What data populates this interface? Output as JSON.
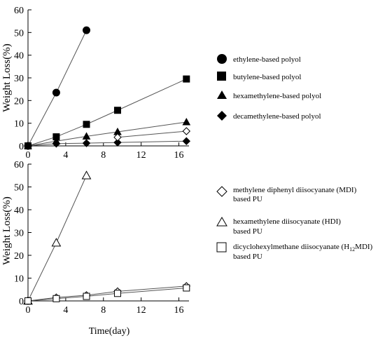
{
  "chart_data": [
    {
      "type": "scatter",
      "title": "",
      "xlabel": "",
      "ylabel": "Weight Loss(%)",
      "xlim": [
        0,
        17
      ],
      "ylim": [
        0,
        60
      ],
      "xticks": [
        "0",
        "4",
        "8",
        "12",
        "16"
      ],
      "yticks": [
        "0",
        "10",
        "20",
        "30",
        "40",
        "50",
        "60"
      ],
      "grid": false,
      "legend_placement": "right",
      "series": [
        {
          "name": "ethylene-based polyol",
          "marker": "circle",
          "filled": true,
          "x": [
            0,
            3,
            6.2
          ],
          "y": [
            0,
            23.5,
            51
          ]
        },
        {
          "name": "butylene-based polyol",
          "marker": "square",
          "filled": true,
          "x": [
            0,
            3,
            6.2,
            9.5,
            16.8
          ],
          "y": [
            0,
            4,
            9.5,
            15.7,
            29.5
          ]
        },
        {
          "name": "hexamethylene-based polyol",
          "marker": "triangle",
          "filled": true,
          "x": [
            0,
            3,
            6.2,
            9.5,
            16.8
          ],
          "y": [
            0,
            2.1,
            4.2,
            6.2,
            10.5
          ]
        },
        {
          "name": "decamethylene-based polyol",
          "marker": "diamond",
          "filled": true,
          "x": [
            0,
            3,
            6.2,
            9.5,
            16.8
          ],
          "y": [
            0,
            1,
            1.2,
            1.5,
            2.1
          ]
        }
      ],
      "extra_series": [
        {
          "marker": "diamond",
          "filled": false,
          "x": [
            9.5,
            16.8
          ],
          "y": [
            3.8,
            6.5
          ]
        }
      ]
    },
    {
      "type": "scatter",
      "title": "",
      "xlabel": "Time(day)",
      "ylabel": "Weight Loss(%)",
      "xlim": [
        0,
        17
      ],
      "ylim": [
        0,
        60
      ],
      "xticks": [
        "0",
        "4",
        "8",
        "12",
        "16"
      ],
      "yticks": [
        "0",
        "10",
        "20",
        "30",
        "40",
        "50",
        "60"
      ],
      "grid": false,
      "legend_placement": "right",
      "series": [
        {
          "name": "methylene diphenyl diisocyanate (MDI) based PU",
          "marker": "diamond",
          "filled": false,
          "x": [
            0,
            3,
            6.2,
            9.5,
            16.8
          ],
          "y": [
            0,
            1.5,
            2.5,
            4.2,
            6.5
          ]
        },
        {
          "name": "hexamethylene diisocyanate (HDI) based PU",
          "marker": "triangle",
          "filled": false,
          "x": [
            0,
            3,
            6.2
          ],
          "y": [
            0,
            25.5,
            55
          ]
        },
        {
          "name": "dicyclohexylmethane diisocyanate (H12MDI) based PU",
          "marker": "square",
          "filled": false,
          "x": [
            0,
            3,
            6.2,
            9.5,
            16.8
          ],
          "y": [
            0,
            1,
            2,
            3.3,
            5.7
          ]
        }
      ]
    }
  ],
  "legend_top": [
    {
      "label": "ethylene-based polyol"
    },
    {
      "label": "butylene-based polyol"
    },
    {
      "label": "hexamethylene-based polyol"
    },
    {
      "label": "decamethylene-based polyol"
    }
  ],
  "legend_bottom": [
    {
      "line1": "methylene diphenyl diisocyanate (MDI)",
      "line2": "based PU"
    },
    {
      "line1": "hexamethylene diisocyanate (HDI)",
      "line2": "based PU"
    },
    {
      "line1_pre": "dicyclohexylmethane diisocyanate (H",
      "line1_sub": "12",
      "line1_post": "MDI)",
      "line2": "based PU"
    }
  ]
}
